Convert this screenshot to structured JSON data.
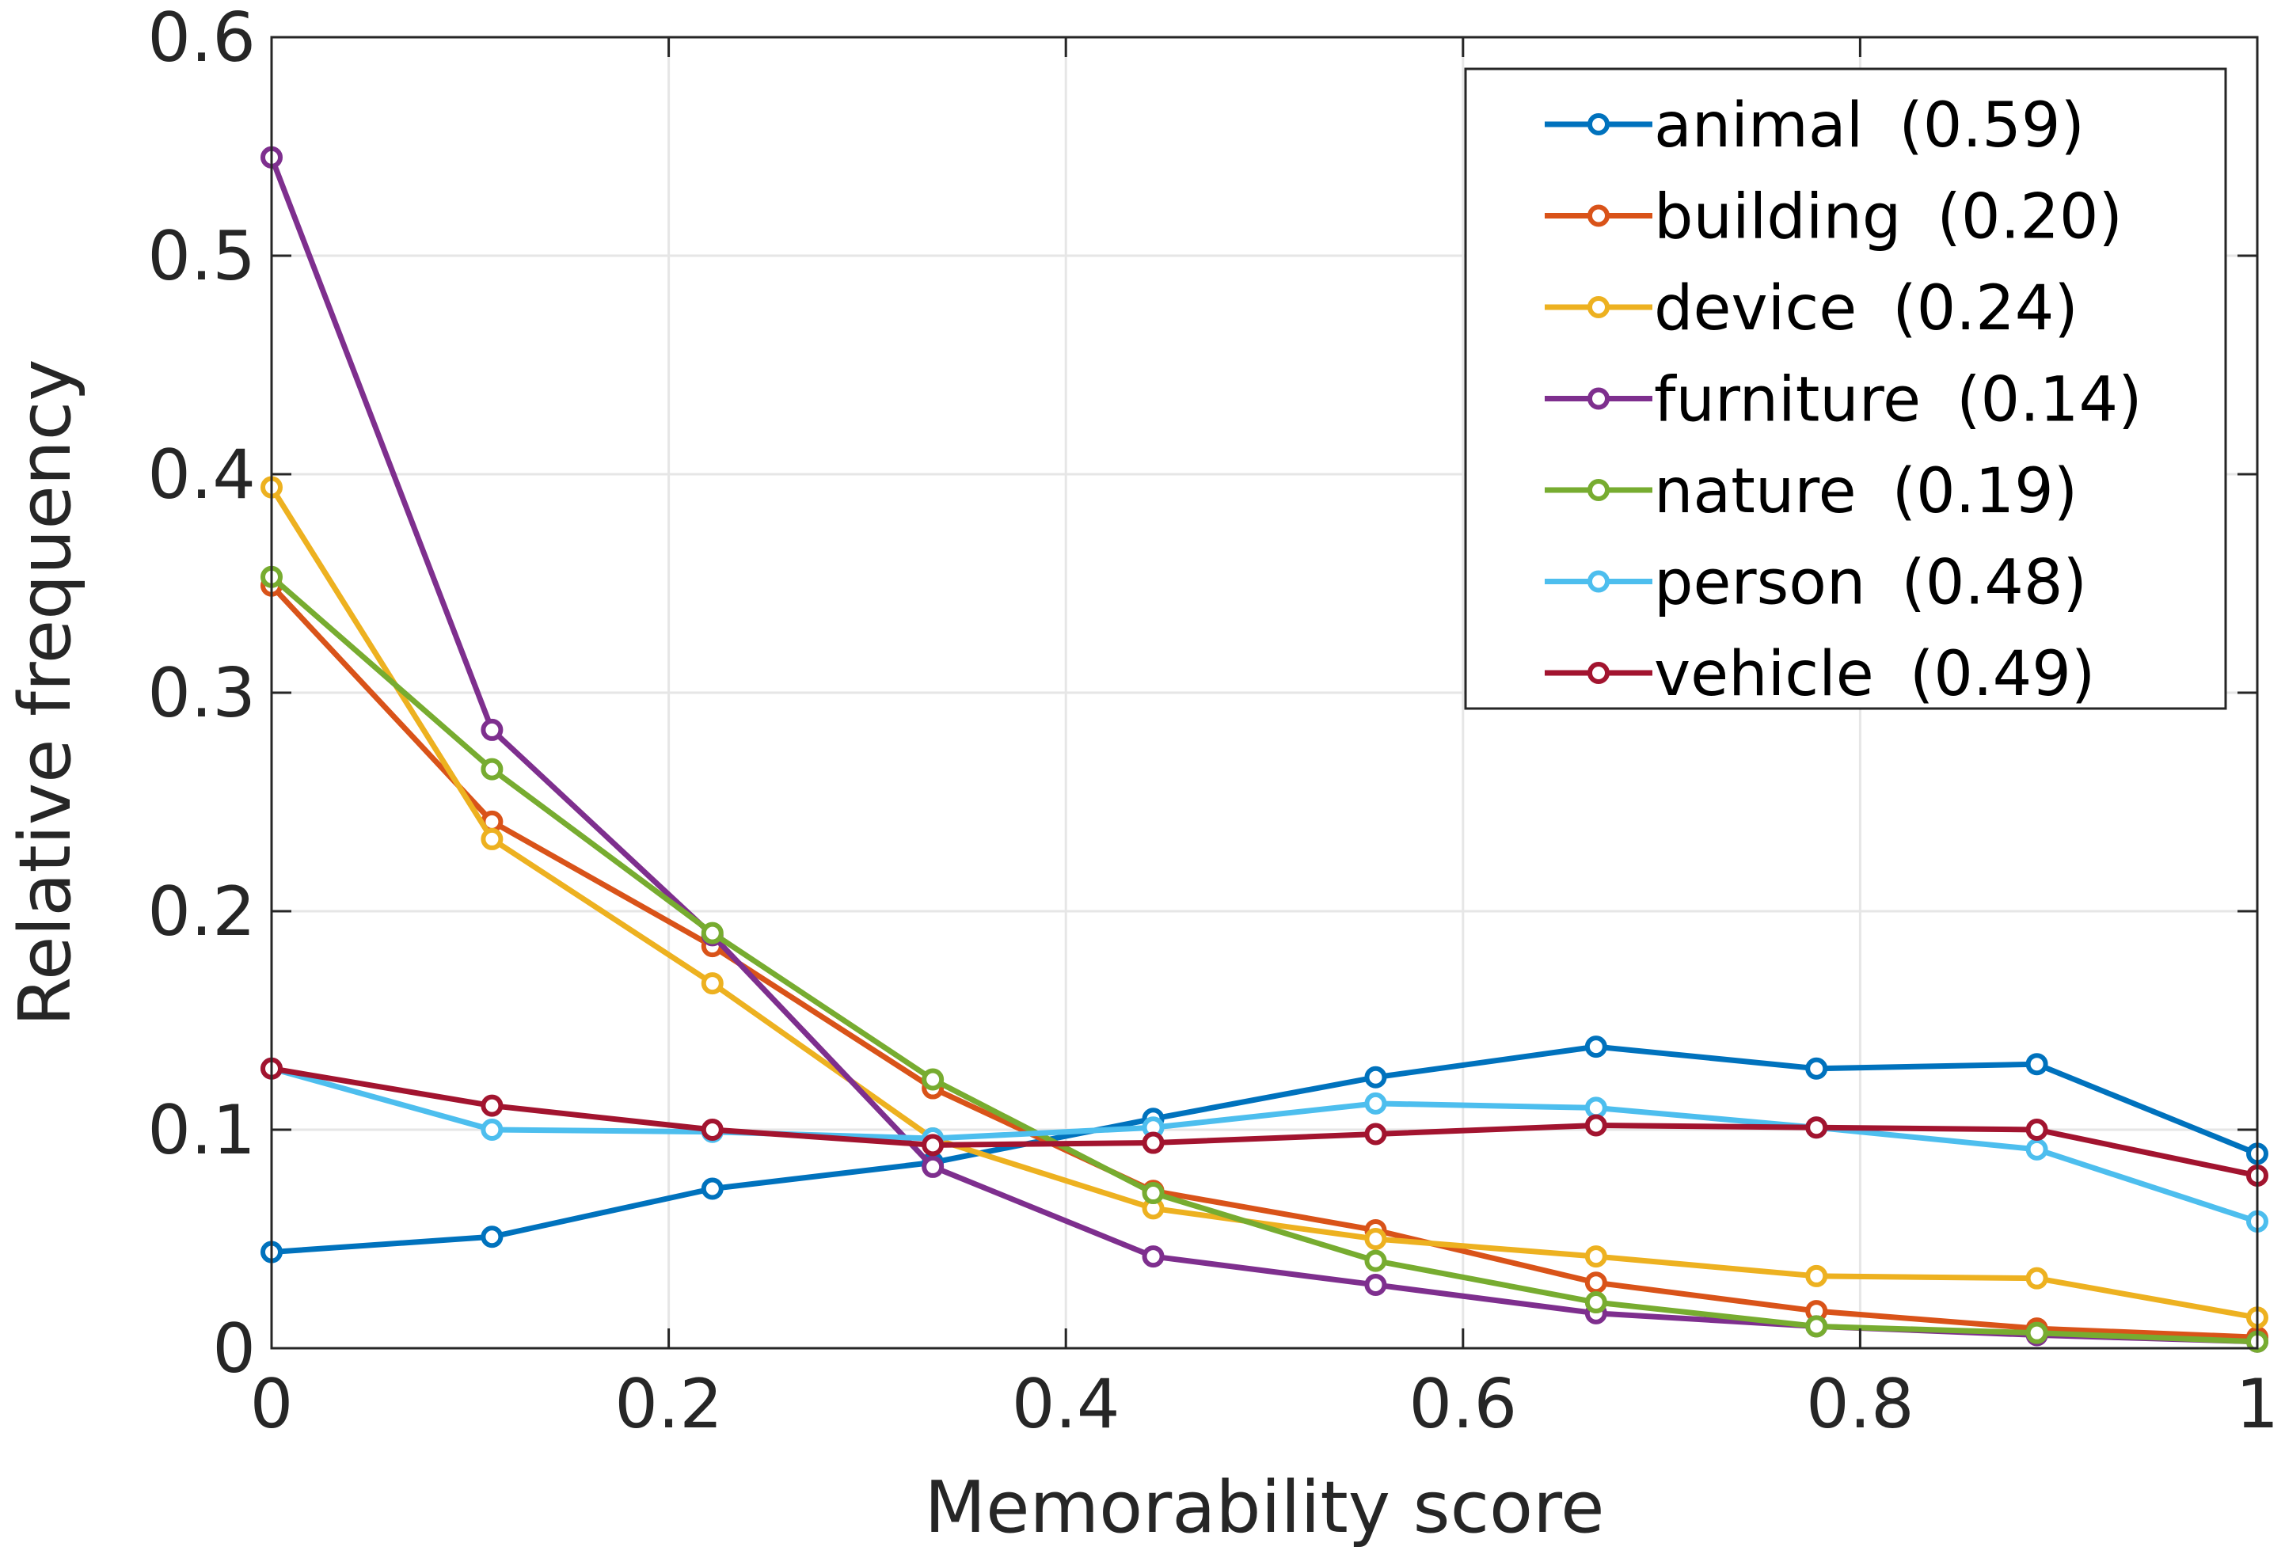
{
  "chart_data": {
    "type": "line",
    "xlabel": "Memorability score",
    "ylabel": "Relative frequency",
    "xlim": [
      0,
      1
    ],
    "ylim": [
      0,
      0.6
    ],
    "xticks": [
      0,
      0.2,
      0.4,
      0.6,
      0.8,
      1
    ],
    "xtick_labels": [
      "0",
      "0.2",
      "0.4",
      "0.6",
      "0.8",
      "1"
    ],
    "yticks": [
      0,
      0.1,
      0.2,
      0.3,
      0.4,
      0.5,
      0.6
    ],
    "ytick_labels": [
      "0",
      "0.1",
      "0.2",
      "0.3",
      "0.4",
      "0.5",
      "0.6"
    ],
    "grid": true,
    "legend_position": "top-right",
    "x": [
      0,
      0.111,
      0.222,
      0.333,
      0.444,
      0.556,
      0.667,
      0.778,
      0.889,
      1.0
    ],
    "series": [
      {
        "name": "animal",
        "label_value": "(0.59)",
        "color": "#0072BD",
        "values": [
          0.044,
          0.051,
          0.073,
          0.085,
          0.105,
          0.124,
          0.138,
          0.128,
          0.13,
          0.089
        ]
      },
      {
        "name": "building",
        "label_value": "(0.20)",
        "color": "#D95319",
        "values": [
          0.349,
          0.241,
          0.184,
          0.119,
          0.072,
          0.054,
          0.03,
          0.017,
          0.009,
          0.005
        ]
      },
      {
        "name": "device",
        "label_value": "(0.24)",
        "color": "#EDB120",
        "values": [
          0.394,
          0.233,
          0.167,
          0.096,
          0.064,
          0.05,
          0.042,
          0.033,
          0.032,
          0.014
        ]
      },
      {
        "name": "furniture",
        "label_value": "(0.14)",
        "color": "#7E2F8E",
        "values": [
          0.545,
          0.283,
          0.189,
          0.083,
          0.042,
          0.029,
          0.016,
          0.01,
          0.006,
          0.003
        ]
      },
      {
        "name": "nature",
        "label_value": "(0.19)",
        "color": "#77AC30",
        "values": [
          0.353,
          0.265,
          0.19,
          0.123,
          0.071,
          0.04,
          0.021,
          0.01,
          0.007,
          0.003
        ]
      },
      {
        "name": "person",
        "label_value": "(0.48)",
        "color": "#4DBEEE",
        "values": [
          0.128,
          0.1,
          0.099,
          0.096,
          0.101,
          0.112,
          0.11,
          0.101,
          0.091,
          0.058
        ]
      },
      {
        "name": "vehicle",
        "label_value": "(0.49)",
        "color": "#A2142F",
        "values": [
          0.128,
          0.111,
          0.1,
          0.093,
          0.094,
          0.098,
          0.102,
          0.101,
          0.1,
          0.079
        ]
      }
    ]
  }
}
